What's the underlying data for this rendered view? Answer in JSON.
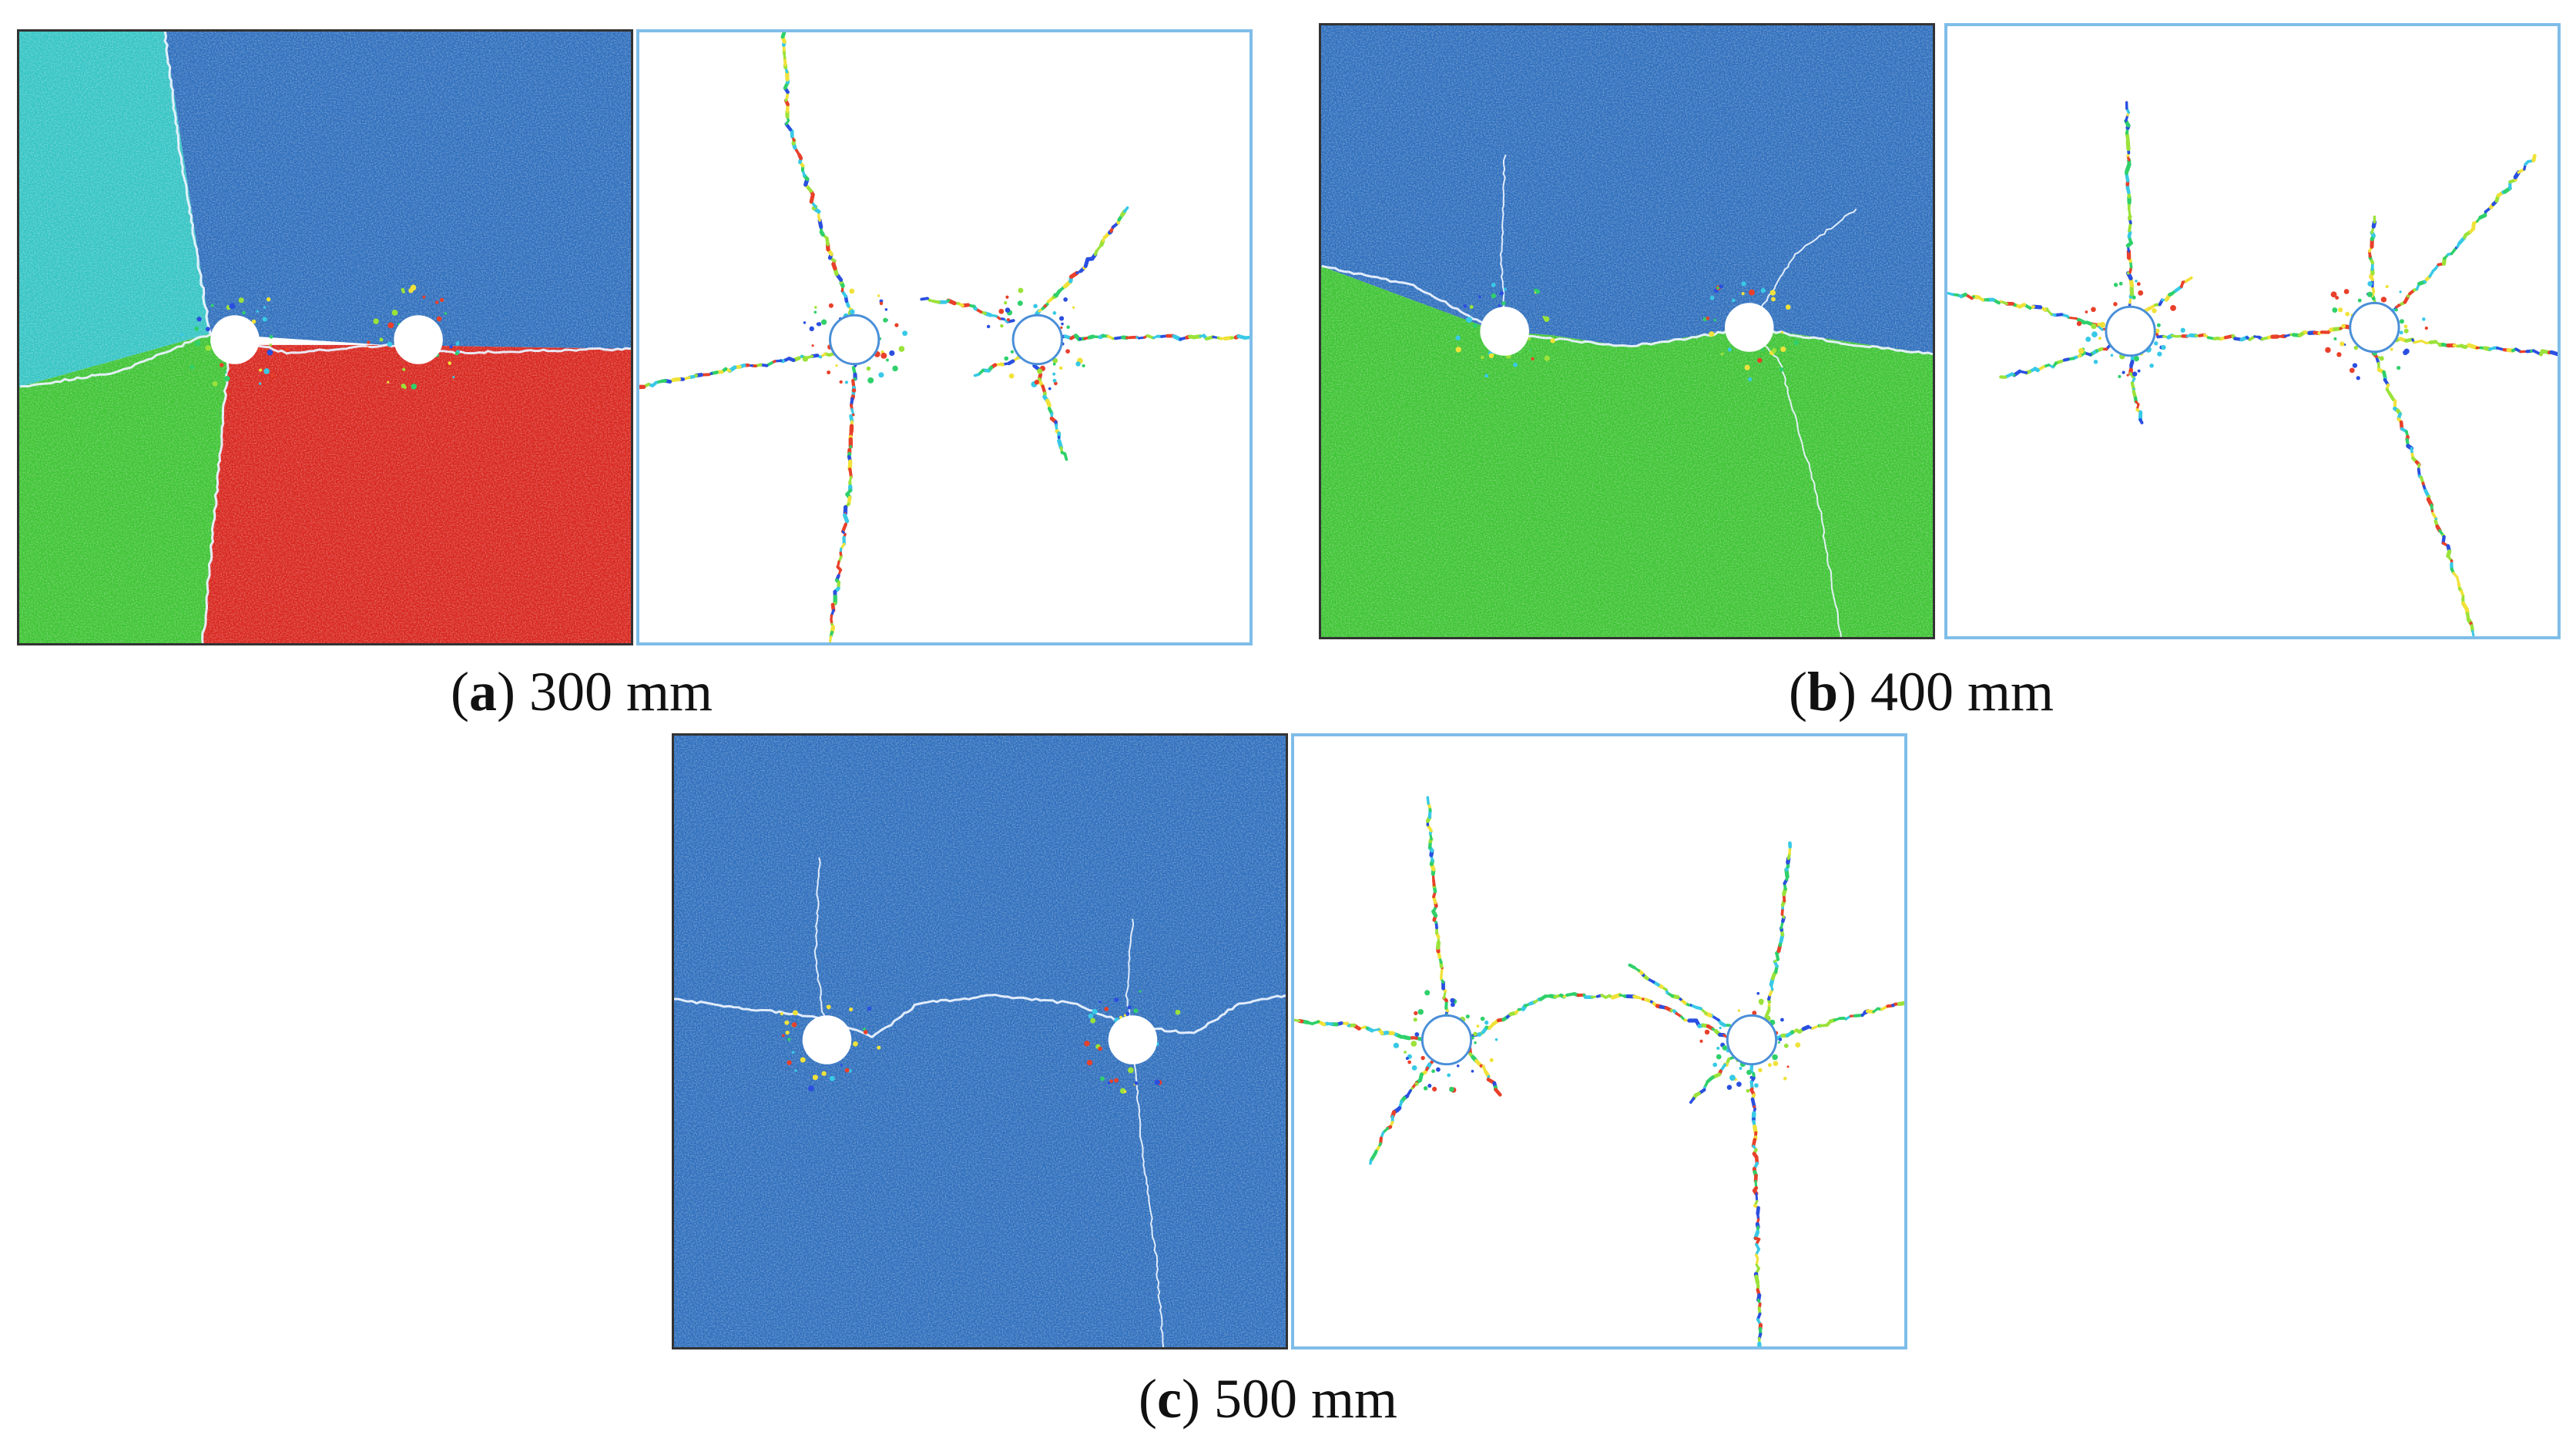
{
  "panels": [
    {
      "id": "a",
      "label": "a",
      "text": " 300 mm",
      "regions": [
        "#35c4c4",
        "#2f6fbd",
        "#3ec434",
        "#d8261e"
      ]
    },
    {
      "id": "b",
      "label": "b",
      "text": " 400 mm",
      "regions": [
        "#2f6fbd",
        "#3ec434"
      ]
    },
    {
      "id": "c",
      "label": "c",
      "text": " 500 mm",
      "regions": [
        "#2f6fbd"
      ]
    }
  ],
  "colors": {
    "crack_palette": [
      "#2a4fe0",
      "#2fd06a",
      "#9be23a",
      "#f0e23a",
      "#38c9e6",
      "#e8402a"
    ],
    "hole": "#ffffff",
    "hole_outline": "#4a8fd8",
    "frame": "#7fbde8"
  }
}
